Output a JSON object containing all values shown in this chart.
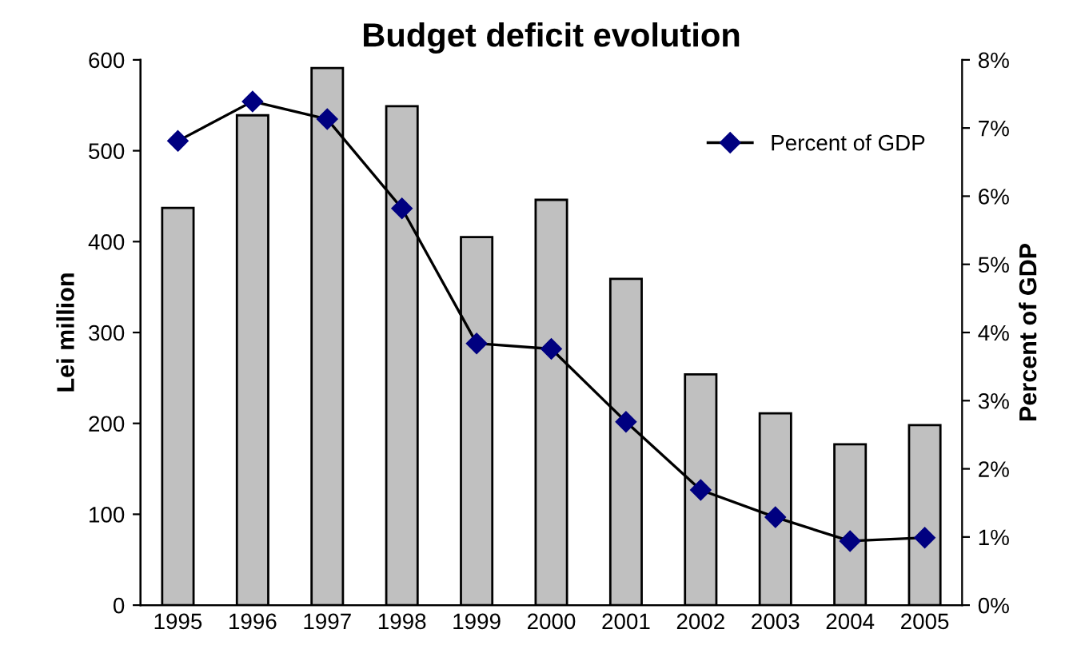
{
  "chart_data": {
    "type": "bar",
    "title": "Budget deficit evolution",
    "ylabel": "Lei million",
    "y2label": "Percent of GDP",
    "categories": [
      "1995",
      "1996",
      "1997",
      "1998",
      "1999",
      "2000",
      "2001",
      "2002",
      "2003",
      "2004",
      "2005"
    ],
    "series": [
      {
        "color": "#c0c0c0",
        "values": [
          437,
          539,
          591,
          549,
          405,
          446,
          359,
          254,
          211,
          177,
          198
        ]
      },
      {
        "name": "Percent of GDP",
        "type": "line",
        "axis": "y2",
        "color": "#000080",
        "marker": "diamond",
        "line_style": "solid",
        "values": [
          6.81,
          7.39,
          7.13,
          5.82,
          3.84,
          3.76,
          2.69,
          1.69,
          1.29,
          0.94,
          0.99
        ]
      }
    ],
    "ylim": [
      0,
      600
    ],
    "yticks": [
      0,
      100,
      200,
      300,
      400,
      500,
      600
    ],
    "y2lim": [
      0,
      8
    ],
    "y2ticks": [
      {
        "value": 0,
        "label": "0%"
      },
      {
        "value": 1,
        "label": "1%"
      },
      {
        "value": 2,
        "label": "2%"
      },
      {
        "value": 3,
        "label": "3%"
      },
      {
        "value": 4,
        "label": "4%"
      },
      {
        "value": 5,
        "label": "5%"
      },
      {
        "value": 6,
        "label": "6%"
      },
      {
        "value": 7,
        "label": "7%"
      },
      {
        "value": 8,
        "label": "8%"
      }
    ],
    "legend": "top right",
    "grid": false
  }
}
